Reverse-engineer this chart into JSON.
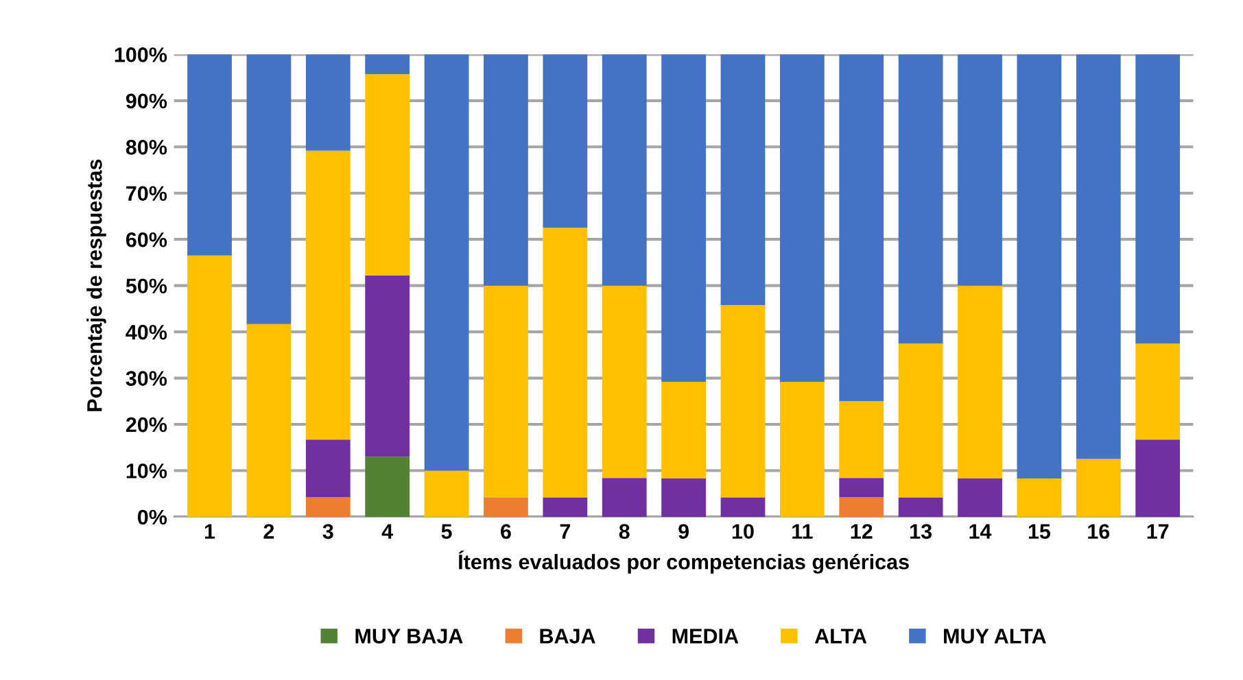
{
  "chart_data": {
    "type": "bar",
    "stacked": true,
    "xlabel": "Ítems evaluados por competencias genéricas",
    "ylabel": "Porcentaje de respuestas",
    "categories": [
      "1",
      "2",
      "3",
      "4",
      "5",
      "6",
      "7",
      "8",
      "9",
      "10",
      "11",
      "12",
      "13",
      "14",
      "15",
      "16",
      "17"
    ],
    "series": [
      {
        "name": "MUY BAJA",
        "color": "#548235",
        "values": [
          0,
          0,
          0,
          13.0,
          0,
          0,
          0,
          0,
          0,
          0,
          0,
          0,
          0,
          0,
          0,
          0,
          0
        ]
      },
      {
        "name": "BAJA",
        "color": "#ed7d31",
        "values": [
          0,
          0,
          4.2,
          0,
          0,
          4.2,
          0,
          0,
          0,
          0,
          0,
          4.2,
          0,
          0,
          0,
          0,
          0
        ]
      },
      {
        "name": "MEDIA",
        "color": "#7030a0",
        "values": [
          0,
          0,
          12.5,
          39.2,
          0,
          0,
          4.2,
          8.4,
          8.3,
          4.2,
          0,
          4.2,
          4.2,
          8.3,
          0,
          0,
          16.7
        ]
      },
      {
        "name": "ALTA",
        "color": "#ffc000",
        "values": [
          56.5,
          41.7,
          62.5,
          43.5,
          10.0,
          45.8,
          58.3,
          41.6,
          20.9,
          41.6,
          29.2,
          16.6,
          33.3,
          41.7,
          8.3,
          12.5,
          20.8
        ]
      },
      {
        "name": "MUY ALTA",
        "color": "#4472c4",
        "values": [
          43.5,
          58.3,
          20.8,
          4.3,
          90.0,
          50.0,
          37.5,
          50.0,
          70.8,
          54.2,
          70.8,
          75.0,
          62.5,
          50.0,
          91.7,
          87.5,
          62.5
        ]
      }
    ],
    "ylim": [
      0,
      100
    ],
    "yticks": [
      {
        "value": 0,
        "label": "0%"
      },
      {
        "value": 10,
        "label": "10%"
      },
      {
        "value": 20,
        "label": "20%"
      },
      {
        "value": 30,
        "label": "30%"
      },
      {
        "value": 40,
        "label": "40%"
      },
      {
        "value": 50,
        "label": "50%"
      },
      {
        "value": 60,
        "label": "60%"
      },
      {
        "value": 70,
        "label": "70%"
      },
      {
        "value": 80,
        "label": "80%"
      },
      {
        "value": 90,
        "label": "90%"
      },
      {
        "value": 100,
        "label": "100%"
      }
    ],
    "grid": "y",
    "legend": "bottom"
  }
}
